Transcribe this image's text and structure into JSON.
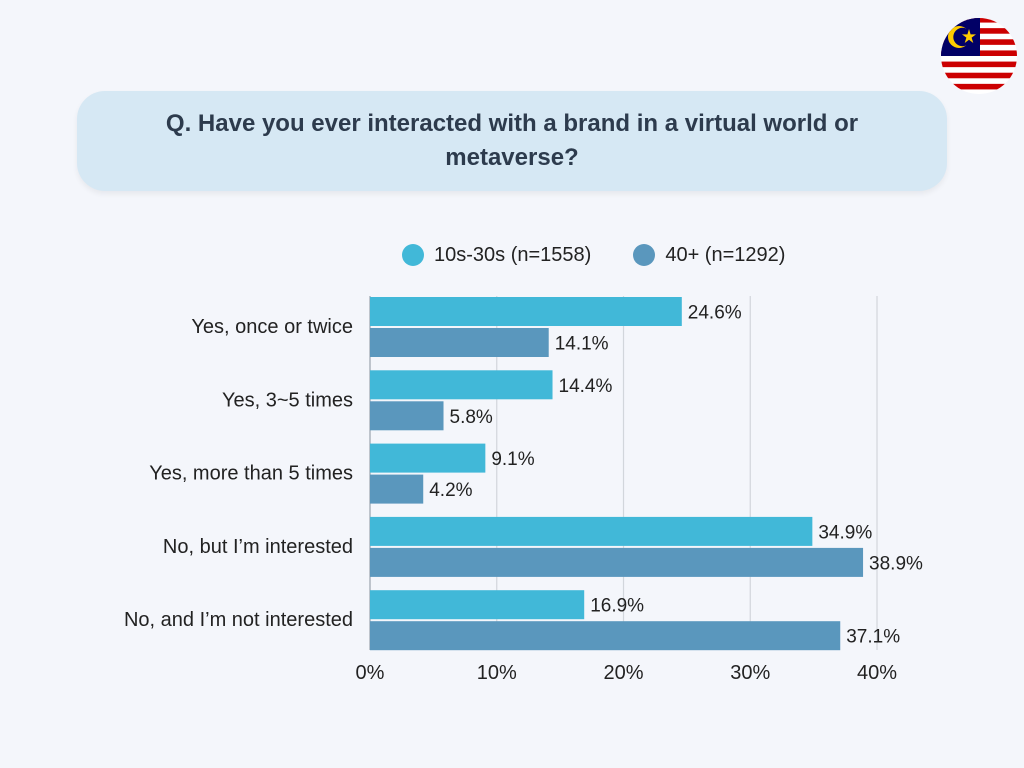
{
  "question": "Q. Have you ever interacted with a brand in a virtual world or metaverse?",
  "flag": {
    "icon": "malaysia-flag-icon"
  },
  "chart_data": {
    "type": "bar",
    "orientation": "horizontal",
    "categories": [
      "Yes, once or twice",
      "Yes, 3~5 times",
      "Yes, more than 5 times",
      "No, but I’m interested",
      "No, and I’m not interested"
    ],
    "series": [
      {
        "name": "10s-30s (n=1558)",
        "color": "#41b8d8",
        "values": [
          24.6,
          14.4,
          9.1,
          34.9,
          16.9
        ],
        "labels": [
          "24.6%",
          "14.4%",
          "9.1%",
          "34.9%",
          "16.9%"
        ]
      },
      {
        "name": "40+ (n=1292)",
        "color": "#5a97bd",
        "values": [
          14.1,
          5.8,
          4.2,
          38.9,
          37.1
        ],
        "labels": [
          "14.1%",
          "5.8%",
          "4.2%",
          "38.9%",
          "37.1%"
        ]
      }
    ],
    "xlim": [
      0,
      40
    ],
    "xticks": [
      "0%",
      "10%",
      "20%",
      "30%",
      "40%"
    ],
    "grid": true,
    "legend": "top"
  }
}
